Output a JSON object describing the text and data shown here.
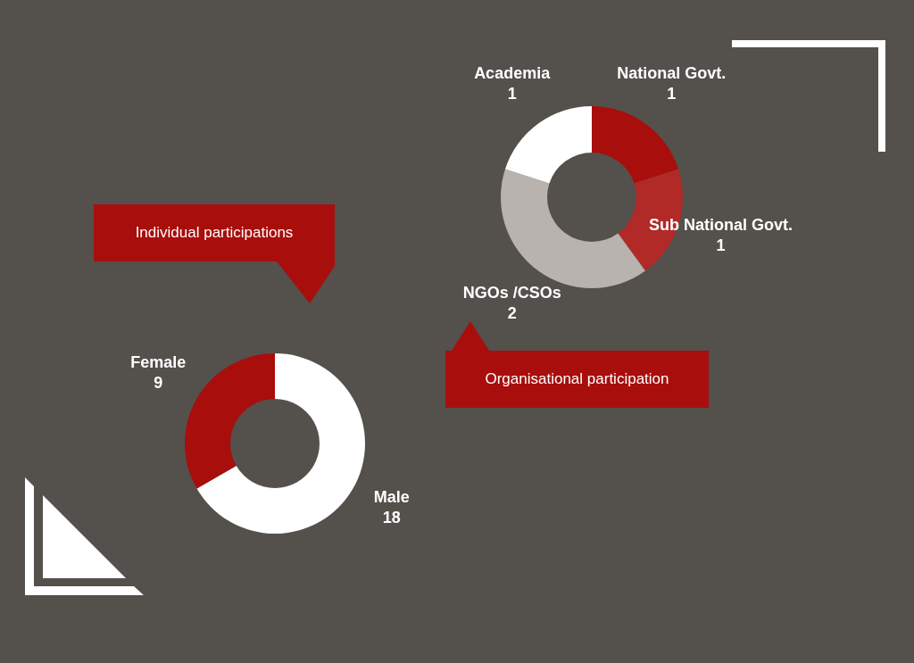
{
  "chart_data": [
    {
      "type": "donut",
      "title": "Individual participations",
      "categories": [
        "Male",
        "Female"
      ],
      "values": [
        18,
        9
      ],
      "colors": [
        "#ffffff",
        "#a80e0c"
      ],
      "data_labels": true
    },
    {
      "type": "donut",
      "title": "Organisational participation",
      "categories": [
        "National Govt.",
        "Sub National Govt.",
        "NGOs /CSOs",
        "Academia"
      ],
      "values": [
        1,
        1,
        2,
        1
      ],
      "colors": [
        "#a80e0c",
        "#b22a27",
        "#b8b3ae",
        "#ffffff"
      ],
      "data_labels": true
    }
  ]
}
